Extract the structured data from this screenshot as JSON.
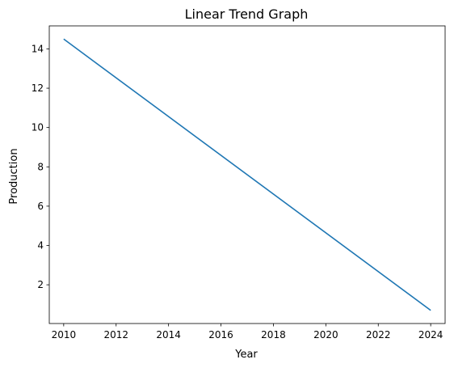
{
  "chart_data": {
    "type": "line",
    "title": "Linear Trend Graph",
    "xlabel": "Year",
    "ylabel": "Production",
    "xlim": [
      2009.45,
      2024.55
    ],
    "ylim": [
      0.03,
      15.17
    ],
    "x_ticks": [
      2010,
      2012,
      2014,
      2016,
      2018,
      2020,
      2022,
      2024
    ],
    "y_ticks": [
      2,
      4,
      6,
      8,
      10,
      12,
      14
    ],
    "grid": false,
    "series": [
      {
        "color": "#1f77b4",
        "x": [
          2010,
          2024
        ],
        "y": [
          14.5,
          0.7
        ]
      }
    ]
  }
}
